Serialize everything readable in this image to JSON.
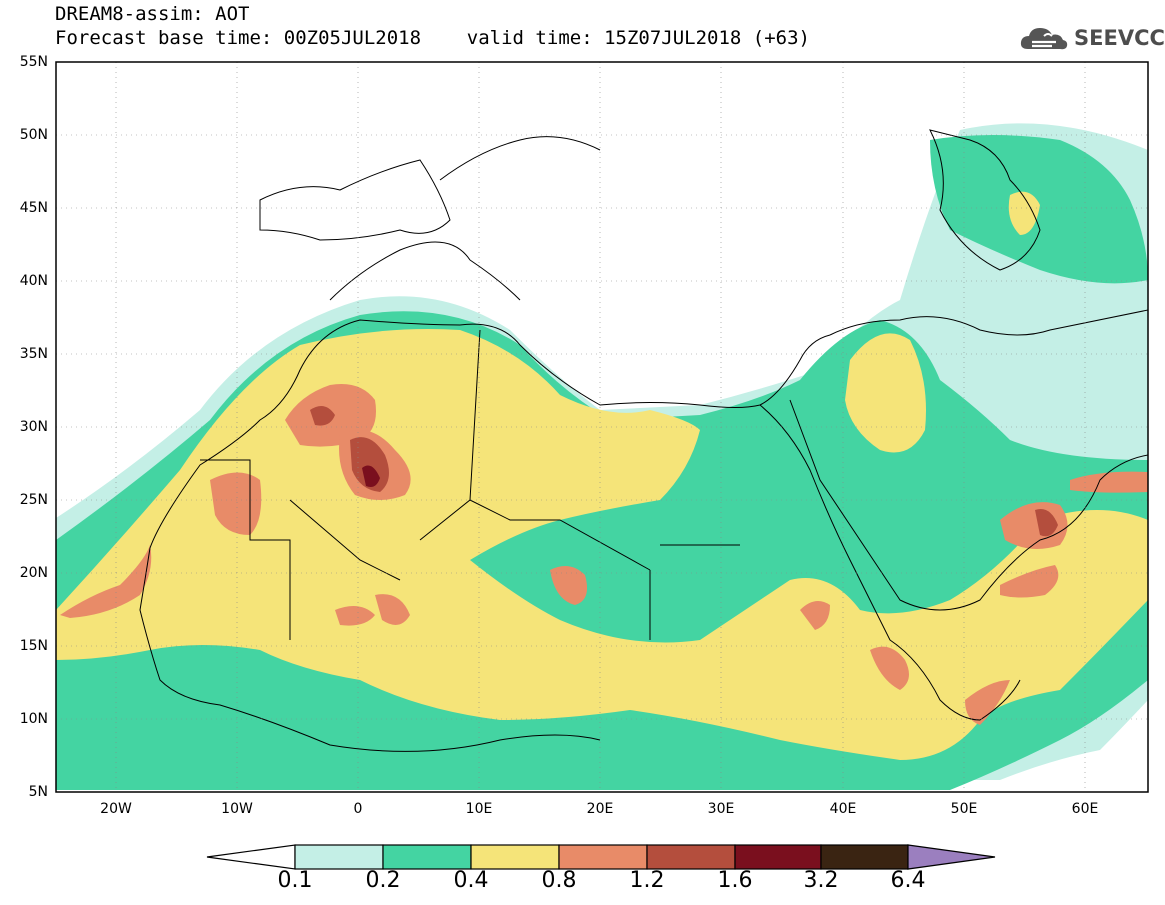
{
  "title_line1": "DREAM8-assim: AOT",
  "title_line2": "Forecast base time: 00Z05JUL2018    valid time: 15Z07JUL2018 (+63)",
  "logo_text": "SEEVCCC",
  "logo_icon": "cloud-icon",
  "map": {
    "variable": "AOT",
    "lon_range": [
      -25,
      65
    ],
    "lat_range": [
      5,
      55
    ],
    "lat_labels": [
      "55N",
      "50N",
      "45N",
      "40N",
      "35N",
      "30N",
      "25N",
      "20N",
      "15N",
      "10N",
      "5N"
    ],
    "lon_labels": [
      "20W",
      "10W",
      "0",
      "10E",
      "20E",
      "30E",
      "40E",
      "50E",
      "60E"
    ],
    "ocean_color": "#ffffff",
    "coastline_color": "#000000"
  },
  "colorbar": {
    "thresholds": [
      "0.1",
      "0.2",
      "0.4",
      "0.8",
      "1.2",
      "1.6",
      "3.2",
      "6.4"
    ],
    "colors": [
      "#ffffff",
      "#c4efe6",
      "#44d4a2",
      "#f5e479",
      "#e88b68",
      "#b44e3d",
      "#7a0f1e",
      "#3a2412",
      "#9b7fbf"
    ]
  }
}
